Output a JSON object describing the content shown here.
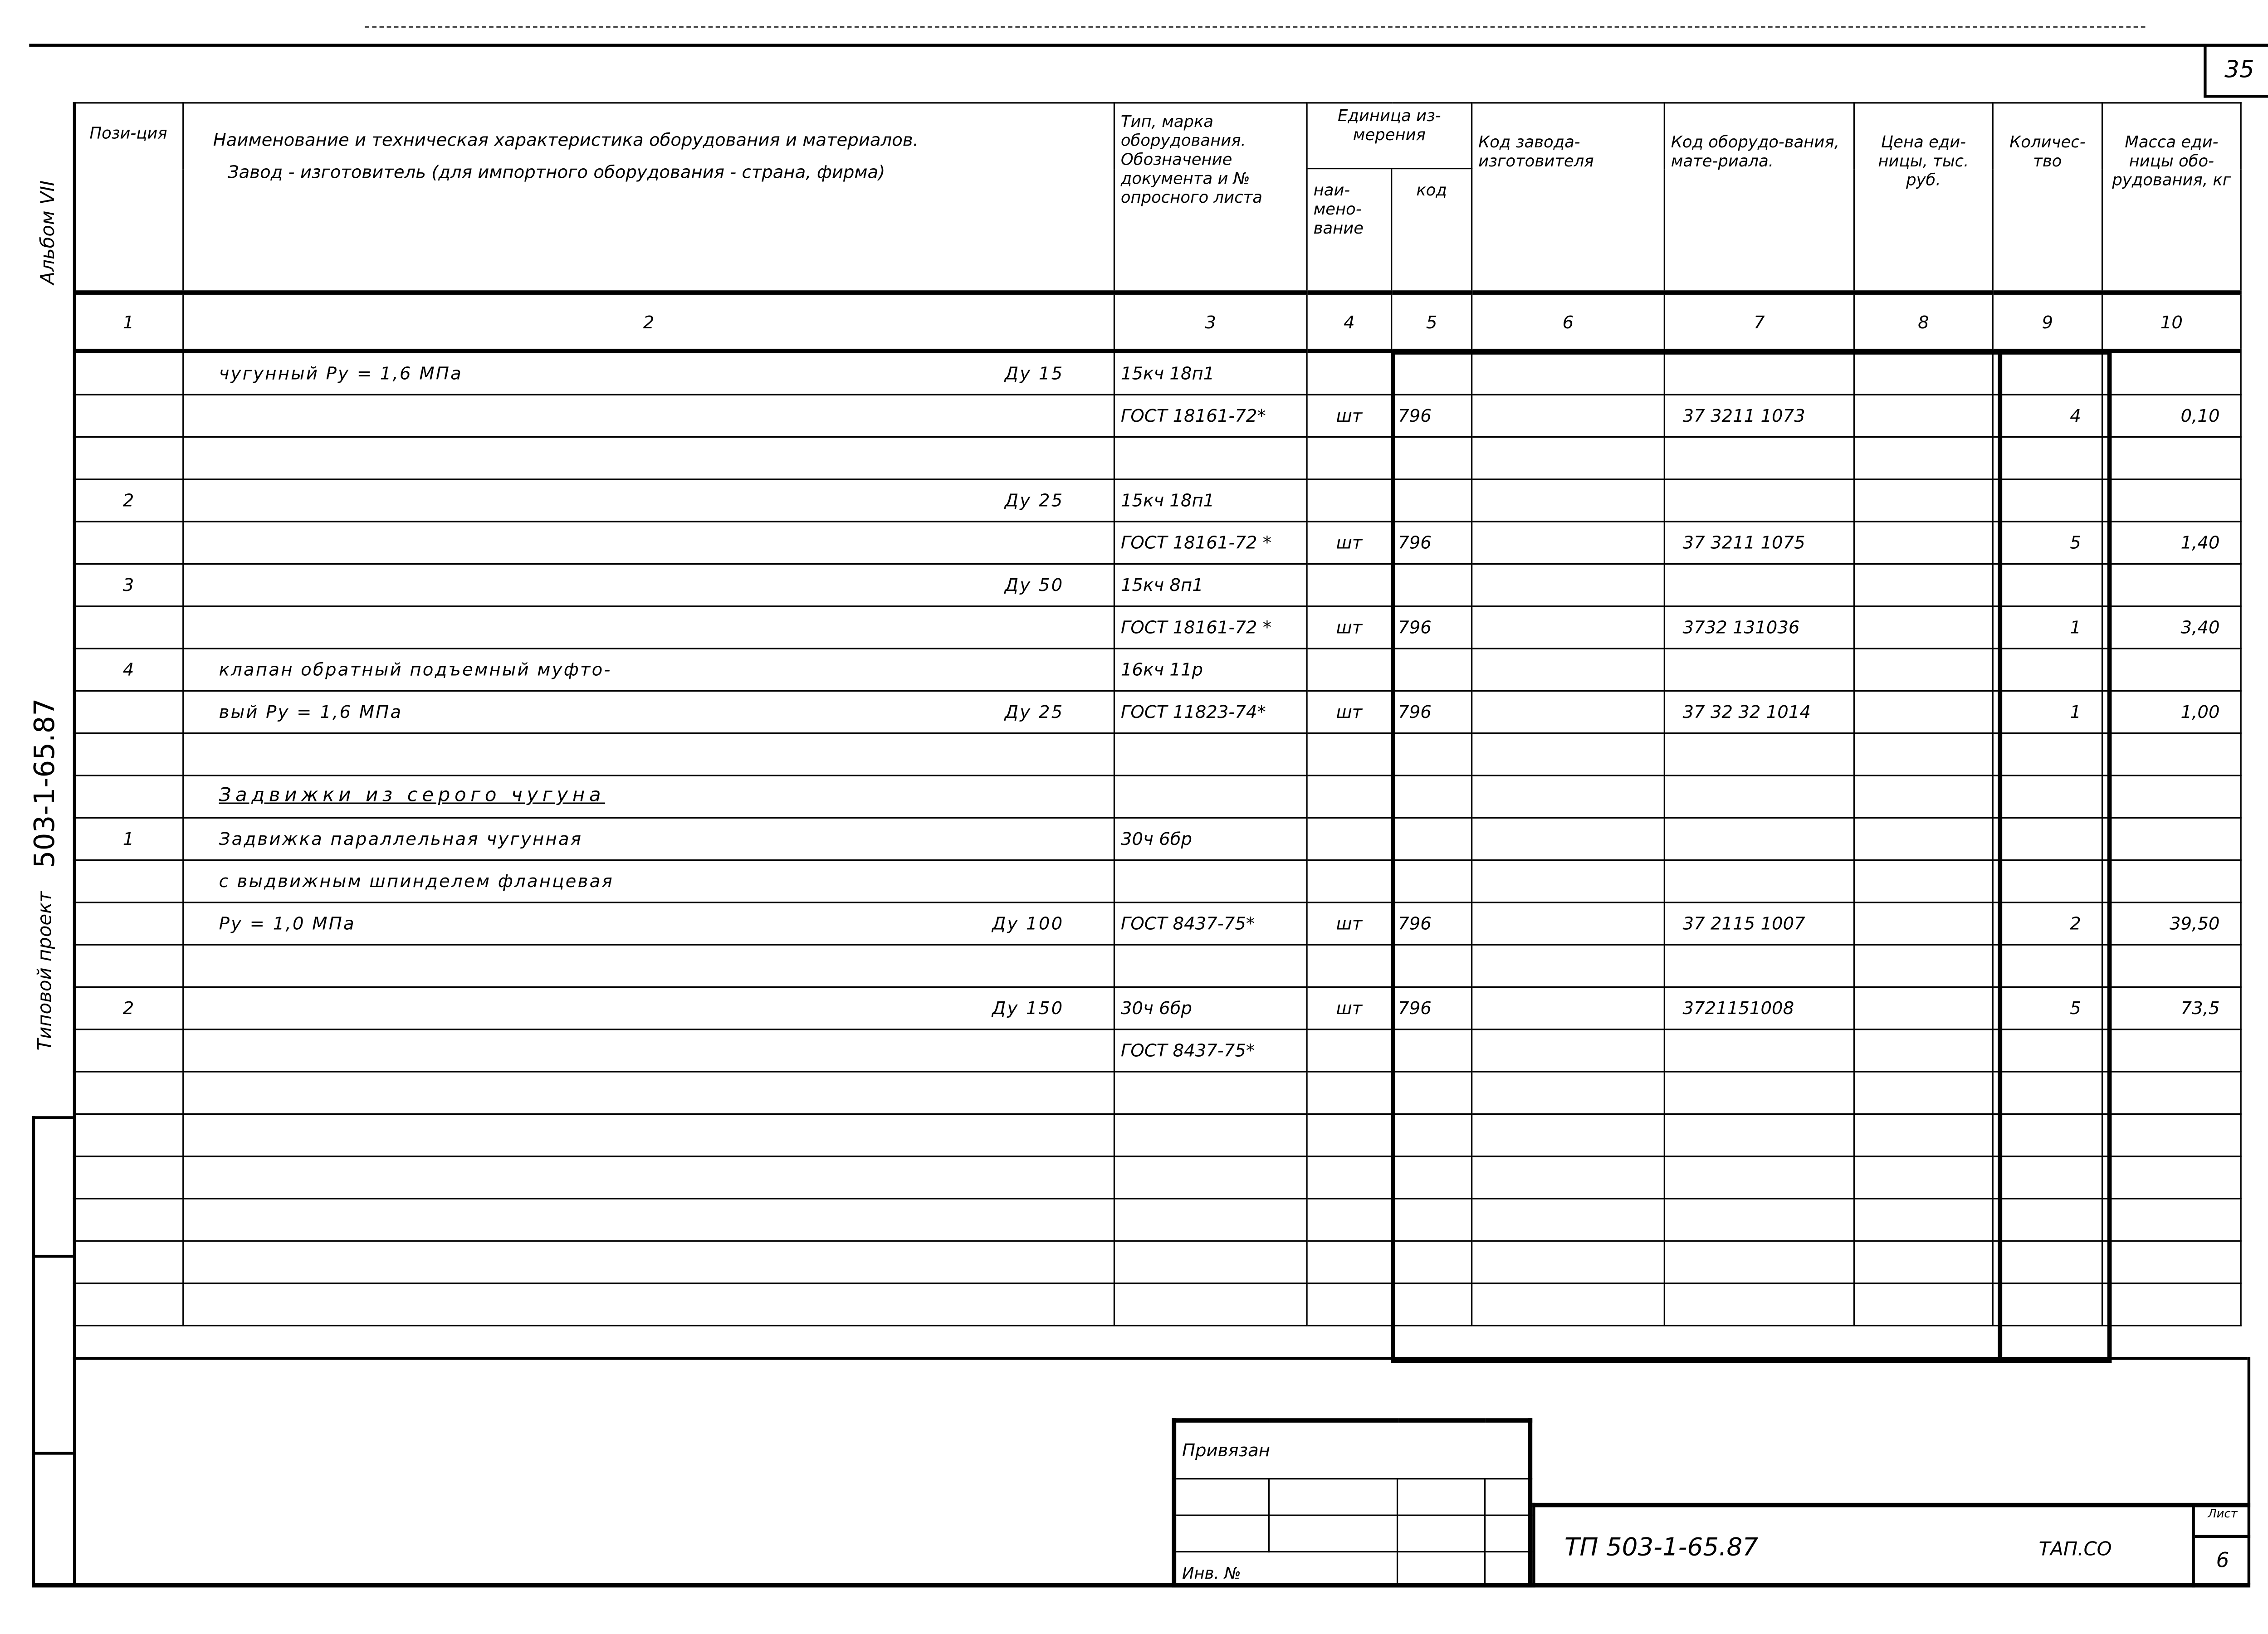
{
  "sheet_corner_number": "35",
  "side": {
    "album": "Альбом VII",
    "project": "Типовой проект",
    "project_code": "503-1-65.87"
  },
  "header": {
    "position": "Пози-ция",
    "name_line1": "Наименование и техническая характеристика оборудования и материалов.",
    "name_line2": "Завод - изготовитель (для импортного оборудования - страна, фирма)",
    "type": "Тип, марка оборудования. Обозначение документа и № опросного листа",
    "unit": "Единица из-мерения",
    "unit_name": "наи-мено-вание",
    "unit_code": "код",
    "factory_code": "Код завода-изготовителя",
    "equipment_code": "Код оборудо-вания, мате-риала.",
    "price": "Цена еди-ницы, тыс. руб.",
    "quantity": "Количес-тво",
    "mass": "Масса еди-ницы обо-рудования, кг"
  },
  "column_numbers": [
    "1",
    "2",
    "3",
    "4",
    "5",
    "6",
    "7",
    "8",
    "9",
    "10"
  ],
  "rows": [
    {
      "pos": "",
      "name": "чугунный      Ру = 1,6 МПа",
      "du": "Ду 15",
      "type": "15кч 18п1",
      "unit": "",
      "code": "",
      "factory": "",
      "equip": "",
      "price": "",
      "qty": "",
      "mass": ""
    },
    {
      "pos": "",
      "name": "",
      "du": "",
      "type": "ГОСТ 18161-72*",
      "unit": "шт",
      "code": "796",
      "factory": "",
      "equip": "37 3211 1073",
      "price": "",
      "qty": "4",
      "mass": "0,10"
    },
    {
      "pos": "",
      "name": "",
      "du": "",
      "type": "",
      "unit": "",
      "code": "",
      "factory": "",
      "equip": "",
      "price": "",
      "qty": "",
      "mass": ""
    },
    {
      "pos": "2",
      "name": "",
      "du": "Ду 25",
      "type": "15кч 18п1",
      "unit": "",
      "code": "",
      "factory": "",
      "equip": "",
      "price": "",
      "qty": "",
      "mass": ""
    },
    {
      "pos": "",
      "name": "",
      "du": "",
      "type": "ГОСТ 18161-72 *",
      "unit": "шт",
      "code": "796",
      "factory": "",
      "equip": "37 3211 1075",
      "price": "",
      "qty": "5",
      "mass": "1,40"
    },
    {
      "pos": "3",
      "name": "",
      "du": "Ду 50",
      "type": "15кч 8п1",
      "unit": "",
      "code": "",
      "factory": "",
      "equip": "",
      "price": "",
      "qty": "",
      "mass": ""
    },
    {
      "pos": "",
      "name": "",
      "du": "",
      "type": "ГОСТ 18161-72 *",
      "unit": "шт",
      "code": "796",
      "factory": "",
      "equip": "3732 131036",
      "price": "",
      "qty": "1",
      "mass": "3,40"
    },
    {
      "pos": "4",
      "name": "клапан   обратный   подъемный        муфто-",
      "du": "",
      "type": "16кч 11р",
      "unit": "",
      "code": "",
      "factory": "",
      "equip": "",
      "price": "",
      "qty": "",
      "mass": ""
    },
    {
      "pos": "",
      "name": "вый    Ру = 1,6 МПа",
      "du": "Ду 25",
      "type": "ГОСТ 11823-74*",
      "unit": "шт",
      "code": "796",
      "factory": "",
      "equip": "37 32 32 1014",
      "price": "",
      "qty": "1",
      "mass": "1,00"
    },
    {
      "pos": "",
      "name": "",
      "du": "",
      "type": "",
      "unit": "",
      "code": "",
      "factory": "",
      "equip": "",
      "price": "",
      "qty": "",
      "mass": ""
    },
    {
      "pos": "",
      "name": "Задвижки      из      серого      чугуна",
      "heading": true,
      "du": "",
      "type": "",
      "unit": "",
      "code": "",
      "factory": "",
      "equip": "",
      "price": "",
      "qty": "",
      "mass": ""
    },
    {
      "pos": "1",
      "name": "Задвижка      параллельная      чугунная",
      "du": "",
      "type": "30ч 6бр",
      "unit": "",
      "code": "",
      "factory": "",
      "equip": "",
      "price": "",
      "qty": "",
      "mass": ""
    },
    {
      "pos": "",
      "name": "с   выдвижным      шпинделем      фланцевая",
      "du": "",
      "type": "",
      "unit": "",
      "code": "",
      "factory": "",
      "equip": "",
      "price": "",
      "qty": "",
      "mass": ""
    },
    {
      "pos": "",
      "name": "Ру = 1,0 МПа",
      "du": "Ду 100",
      "type": "ГОСТ 8437-75*",
      "unit": "шт",
      "code": "796",
      "factory": "",
      "equip": "37 2115 1007",
      "price": "",
      "qty": "2",
      "mass": "39,50"
    },
    {
      "pos": "",
      "name": "",
      "du": "",
      "type": "",
      "unit": "",
      "code": "",
      "factory": "",
      "equip": "",
      "price": "",
      "qty": "",
      "mass": ""
    },
    {
      "pos": "2",
      "name": "",
      "du": "Ду 150",
      "type": "30ч 6бр",
      "unit": "шт",
      "code": "796",
      "factory": "",
      "equip": "3721151008",
      "price": "",
      "qty": "5",
      "mass": "73,5"
    },
    {
      "pos": "",
      "name": "",
      "du": "",
      "type": "ГОСТ 8437-75*",
      "unit": "",
      "code": "",
      "factory": "",
      "equip": "",
      "price": "",
      "qty": "",
      "mass": ""
    },
    {
      "pos": "",
      "name": "",
      "du": "",
      "type": "",
      "unit": "",
      "code": "",
      "factory": "",
      "equip": "",
      "price": "",
      "qty": "",
      "mass": ""
    },
    {
      "pos": "",
      "name": "",
      "du": "",
      "type": "",
      "unit": "",
      "code": "",
      "factory": "",
      "equip": "",
      "price": "",
      "qty": "",
      "mass": ""
    },
    {
      "pos": "",
      "name": "",
      "du": "",
      "type": "",
      "unit": "",
      "code": "",
      "factory": "",
      "equip": "",
      "price": "",
      "qty": "",
      "mass": ""
    },
    {
      "pos": "",
      "name": "",
      "du": "",
      "type": "",
      "unit": "",
      "code": "",
      "factory": "",
      "equip": "",
      "price": "",
      "qty": "",
      "mass": ""
    },
    {
      "pos": "",
      "name": "",
      "du": "",
      "type": "",
      "unit": "",
      "code": "",
      "factory": "",
      "equip": "",
      "price": "",
      "qty": "",
      "mass": ""
    },
    {
      "pos": "",
      "name": "",
      "du": "",
      "type": "",
      "unit": "",
      "code": "",
      "factory": "",
      "equip": "",
      "price": "",
      "qty": "",
      "mass": ""
    }
  ],
  "stamp": {
    "linked": "Привязан",
    "inv_no": "Инв. №",
    "doc_code": "ТП  503-1-65.87",
    "doc_type": "ТАП.СО",
    "sheet_label": "Лист",
    "sheet_number": "6"
  }
}
